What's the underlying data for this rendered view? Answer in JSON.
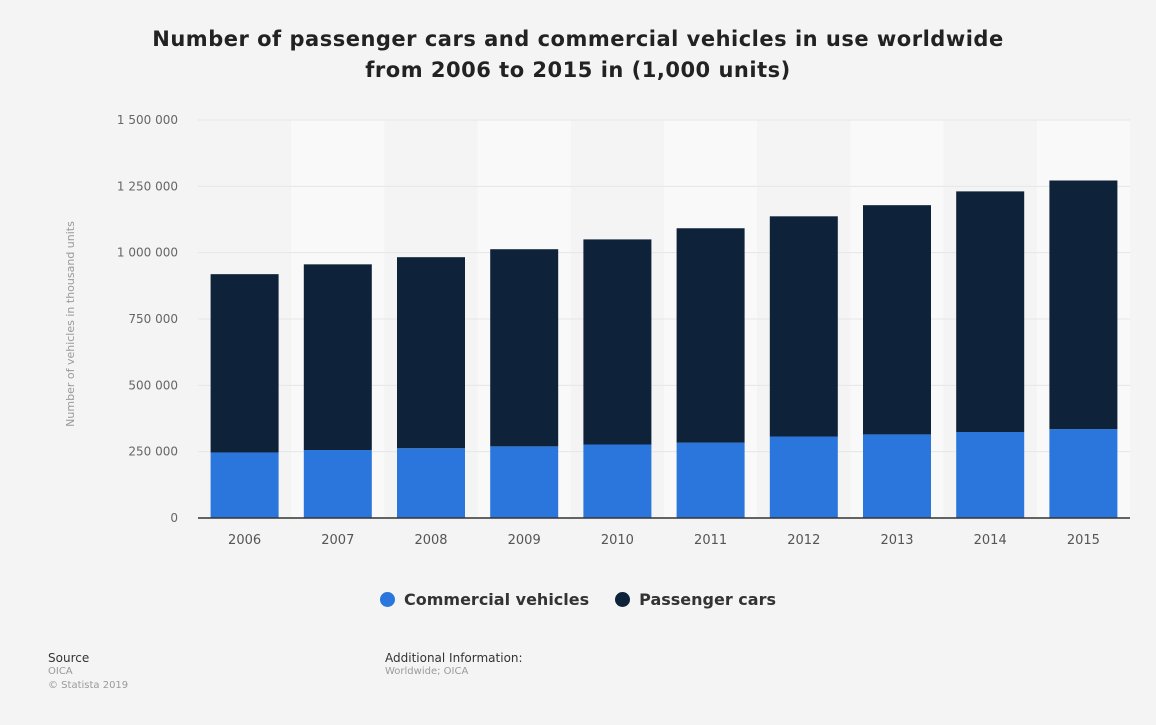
{
  "title_lines": [
    "Number of passenger cars and commercial vehicles in use worldwide",
    "from 2006 to 2015 in (1,000 units)"
  ],
  "footer": {
    "source_heading": "Source",
    "source_lines": [
      "OICA",
      "© Statista 2019"
    ],
    "additional_heading": "Additional Information:",
    "additional_lines": [
      "Worldwide; OICA"
    ]
  },
  "chart_data": {
    "type": "bar",
    "stacked": true,
    "title": "Number of passenger cars and commercial vehicles in use worldwide from 2006 to 2015 in (1,000 units)",
    "xlabel": "",
    "ylabel": "Number of vehicles in thousand units",
    "categories": [
      "2006",
      "2007",
      "2008",
      "2009",
      "2010",
      "2011",
      "2012",
      "2013",
      "2014",
      "2015"
    ],
    "series": [
      {
        "name": "Commercial vehicles",
        "color": "#2a76dd",
        "values": [
          247000,
          256000,
          263000,
          270000,
          277000,
          284000,
          307000,
          315000,
          324000,
          335000
        ]
      },
      {
        "name": "Passenger cars",
        "color": "#0e2339",
        "values": [
          672000,
          700000,
          720000,
          743000,
          773000,
          808000,
          830000,
          864000,
          907000,
          937000
        ]
      }
    ],
    "ylim": [
      0,
      1500000
    ],
    "yticks": [
      0,
      250000,
      500000,
      750000,
      1000000,
      1250000,
      1500000
    ],
    "ytick_labels": [
      "0",
      "250 000",
      "500 000",
      "750 000",
      "1 000 000",
      "1 250 000",
      "1 500 000"
    ],
    "grid": true,
    "legend_position": "bottom"
  }
}
